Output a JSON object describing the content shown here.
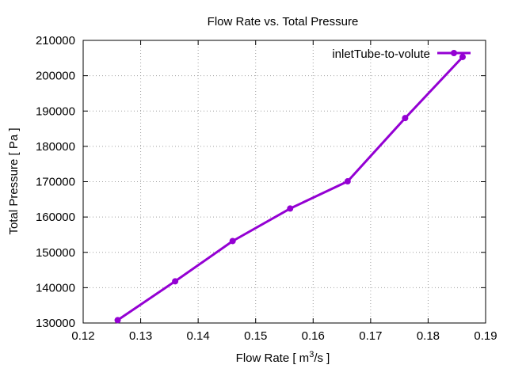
{
  "chart_data": {
    "type": "line",
    "title": "Flow Rate vs. Total Pressure",
    "xlabel": {
      "prefix": "Flow Rate [ m",
      "superscript": "3",
      "suffix": "/s ]"
    },
    "ylabel": "Total Pressure [ Pa ]",
    "xlim": [
      0.12,
      0.19
    ],
    "ylim": [
      130000,
      210000
    ],
    "xticks": [
      0.12,
      0.13,
      0.14,
      0.15,
      0.16,
      0.17,
      0.18,
      0.19
    ],
    "yticks": [
      130000,
      140000,
      150000,
      160000,
      170000,
      180000,
      190000,
      200000,
      210000
    ],
    "xtick_labels": [
      "0.12",
      "0.13",
      "0.14",
      "0.15",
      "0.16",
      "0.17",
      "0.18",
      "0.19"
    ],
    "ytick_labels": [
      "130000",
      "140000",
      "150000",
      "160000",
      "170000",
      "180000",
      "190000",
      "200000",
      "210000"
    ],
    "grid": true,
    "legend_position": "top-right",
    "series": [
      {
        "name": "inletTube-to-volute",
        "color": "#9400d3",
        "x": [
          0.126,
          0.136,
          0.146,
          0.156,
          0.166,
          0.176,
          0.186
        ],
        "y": [
          130800,
          141800,
          153200,
          162400,
          170100,
          188000,
          205300
        ]
      }
    ]
  }
}
